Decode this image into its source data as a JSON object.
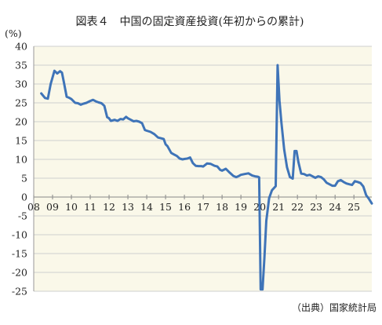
{
  "chart_data": {
    "type": "line",
    "title": "図表４　中国の固定資産投資(年初からの累計)",
    "unit_label": "(%)",
    "source": "（出典）国家統計局",
    "xlabel": "",
    "ylabel": "",
    "ylim": [
      -25,
      40
    ],
    "yticks": [
      40,
      35,
      30,
      25,
      20,
      15,
      10,
      5,
      0,
      -5,
      -10,
      -15,
      -20,
      -25
    ],
    "xlim": [
      2008,
      2025.95
    ],
    "xtick_labels": [
      "08",
      "09",
      "10",
      "11",
      "12",
      "13",
      "14",
      "15",
      "16",
      "17",
      "18",
      "19",
      "20",
      "21",
      "22",
      "23",
      "24",
      "25"
    ],
    "xtick_values": [
      2008,
      2009,
      2010,
      2011,
      2012,
      2013,
      2014,
      2015,
      2016,
      2017,
      2018,
      2019,
      2020,
      2021,
      2022,
      2023,
      2024,
      2025
    ],
    "grid": true,
    "plot_background": "#faf8e9",
    "line_color": "#3f74b8",
    "series": [
      {
        "name": "",
        "x": [
          2008.4,
          2008.6,
          2008.75,
          2008.9,
          2009.1,
          2009.25,
          2009.4,
          2009.5,
          2009.6,
          2009.75,
          2009.9,
          2010.0,
          2010.2,
          2010.35,
          2010.5,
          2010.65,
          2010.8,
          2011.0,
          2011.15,
          2011.3,
          2011.45,
          2011.6,
          2011.75,
          2011.9,
          2012.0,
          2012.1,
          2012.3,
          2012.45,
          2012.6,
          2012.75,
          2012.9,
          2013.0,
          2013.15,
          2013.3,
          2013.45,
          2013.6,
          2013.75,
          2013.9,
          2014.0,
          2014.2,
          2014.4,
          2014.6,
          2014.75,
          2014.9,
          2015.0,
          2015.1,
          2015.3,
          2015.45,
          2015.6,
          2015.75,
          2015.9,
          2016.0,
          2016.15,
          2016.3,
          2016.45,
          2016.6,
          2016.75,
          2016.9,
          2017.0,
          2017.2,
          2017.4,
          2017.6,
          2017.75,
          2017.9,
          2018.0,
          2018.2,
          2018.4,
          2018.6,
          2018.75,
          2018.9,
          2019.0,
          2019.2,
          2019.4,
          2019.6,
          2019.75,
          2019.9,
          2019.97,
          2020.05,
          2020.15,
          2020.25,
          2020.35,
          2020.5,
          2020.65,
          2020.85,
          2020.95,
          2021.05,
          2021.15,
          2021.3,
          2021.45,
          2021.6,
          2021.75,
          2021.85,
          2021.95,
          2022.05,
          2022.2,
          2022.35,
          2022.5,
          2022.65,
          2022.8,
          2022.95,
          2023.1,
          2023.25,
          2023.4,
          2023.55,
          2023.7,
          2023.85,
          2024.0,
          2024.15,
          2024.3,
          2024.45,
          2024.6,
          2024.75,
          2024.9,
          2025.05,
          2025.2,
          2025.35,
          2025.5,
          2025.65,
          2025.8,
          2025.95
        ],
        "y": [
          27.5,
          26.3,
          26.1,
          30.0,
          33.5,
          32.8,
          33.4,
          33.0,
          30.5,
          26.6,
          26.3,
          26.0,
          25.0,
          24.9,
          24.5,
          24.8,
          25.0,
          25.5,
          25.8,
          25.4,
          25.1,
          24.9,
          24.2,
          21.2,
          20.9,
          20.2,
          20.5,
          20.2,
          20.7,
          20.6,
          21.3,
          20.9,
          20.5,
          20.1,
          20.2,
          20.0,
          19.6,
          17.8,
          17.6,
          17.3,
          16.7,
          15.8,
          15.6,
          15.4,
          14.0,
          13.5,
          11.7,
          11.3,
          10.9,
          10.2,
          10.0,
          10.1,
          10.2,
          10.5,
          9.0,
          8.3,
          8.2,
          8.2,
          8.1,
          8.9,
          8.8,
          8.3,
          8.1,
          7.2,
          7.0,
          7.5,
          6.5,
          5.6,
          5.3,
          5.6,
          5.9,
          6.1,
          6.3,
          5.7,
          5.5,
          5.4,
          5.2,
          -24.5,
          -24.5,
          -16.1,
          -6.3,
          -0.3,
          1.8,
          2.9,
          35.0,
          25.6,
          19.9,
          12.6,
          7.9,
          5.3,
          4.9,
          12.2,
          12.2,
          9.3,
          6.2,
          6.1,
          5.7,
          5.9,
          5.5,
          5.1,
          5.5,
          5.3,
          4.7,
          3.8,
          3.4,
          3.0,
          3.0,
          4.2,
          4.5,
          4.0,
          3.6,
          3.4,
          3.2,
          4.2,
          4.0,
          3.7,
          2.8,
          0.5,
          -0.5,
          -1.7
        ]
      }
    ]
  }
}
